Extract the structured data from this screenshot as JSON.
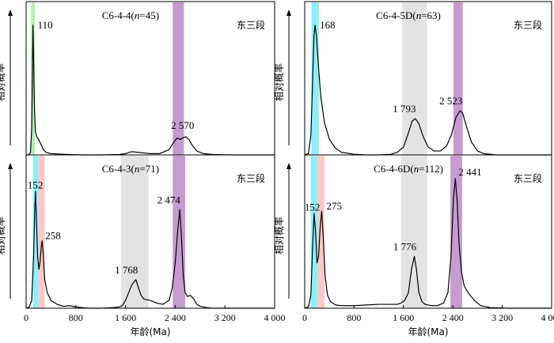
{
  "chart_data": [
    {
      "type": "line",
      "title": "C6-4-4(n=45)",
      "title_parts": [
        "C6-4-4(",
        "n",
        "=45)"
      ],
      "stage_label": "东三段",
      "ylabel": "相对概率",
      "xlabel": "",
      "xlim": [
        0,
        4000
      ],
      "xticks": [],
      "bands": [
        {
          "range": [
            80,
            140
          ],
          "color": "#b3f0b3"
        },
        {
          "range": [
            2360,
            2540
          ],
          "color": "#c79bd1"
        }
      ],
      "peaks": [
        {
          "label": "110",
          "x": 110,
          "y": 1.0
        },
        {
          "label": "2 570",
          "x": 2570,
          "y": 0.14
        }
      ],
      "series": [
        {
          "x": [
            0,
            40,
            70,
            90,
            100,
            110,
            120,
            135,
            150,
            170,
            200,
            240,
            280,
            320,
            400,
            600,
            900,
            1200,
            1500,
            1600,
            1700,
            1800,
            1900,
            2000,
            2150,
            2300,
            2380,
            2430,
            2480,
            2520,
            2570,
            2620,
            2680,
            2750,
            2850,
            3000,
            3300,
            3700,
            4000
          ],
          "y": [
            0,
            0,
            0.02,
            0.2,
            0.6,
            1.0,
            0.75,
            0.35,
            0.18,
            0.14,
            0.12,
            0.08,
            0.04,
            0.02,
            0.01,
            0.005,
            0,
            0,
            0.003,
            0.01,
            0.025,
            0.02,
            0.015,
            0.01,
            0.01,
            0.04,
            0.1,
            0.13,
            0.12,
            0.13,
            0.14,
            0.12,
            0.07,
            0.03,
            0.01,
            0.003,
            0,
            0,
            0
          ]
        }
      ]
    },
    {
      "type": "line",
      "title": "C6-4-5D(n=63)",
      "title_parts": [
        "C6-4-5D(",
        "n",
        "=63)"
      ],
      "stage_label": "东三段",
      "ylabel": "相对概率",
      "xlabel": "",
      "xlim": [
        0,
        4000
      ],
      "xticks": [],
      "bands": [
        {
          "range": [
            110,
            230
          ],
          "color": "#8ef0f7"
        },
        {
          "range": [
            1580,
            1980
          ],
          "color": "#e3e3e3"
        },
        {
          "range": [
            2410,
            2560
          ],
          "color": "#c79bd1"
        }
      ],
      "peaks": [
        {
          "label": "168",
          "x": 168,
          "y": 1.0
        },
        {
          "label": "1 793",
          "x": 1793,
          "y": 0.28
        },
        {
          "label": "2 523",
          "x": 2523,
          "y": 0.34
        }
      ],
      "series": [
        {
          "x": [
            0,
            60,
            100,
            130,
            150,
            168,
            190,
            220,
            260,
            320,
            400,
            500,
            600,
            800,
            1000,
            1200,
            1400,
            1500,
            1600,
            1680,
            1740,
            1793,
            1850,
            1920,
            2000,
            2100,
            2200,
            2300,
            2380,
            2450,
            2500,
            2523,
            2560,
            2620,
            2700,
            2800,
            2900,
            3100,
            3500,
            4000
          ],
          "y": [
            0,
            0.01,
            0.15,
            0.6,
            0.92,
            1.0,
            0.92,
            0.7,
            0.45,
            0.25,
            0.12,
            0.05,
            0.02,
            0.005,
            0,
            0,
            0.005,
            0.02,
            0.06,
            0.17,
            0.26,
            0.28,
            0.24,
            0.14,
            0.06,
            0.03,
            0.03,
            0.07,
            0.16,
            0.29,
            0.33,
            0.34,
            0.32,
            0.22,
            0.1,
            0.03,
            0.01,
            0,
            0,
            0
          ]
        }
      ]
    },
    {
      "type": "line",
      "title": "C6-4-3(n=71)",
      "title_parts": [
        "C6-4-3(",
        "n",
        "=71)"
      ],
      "stage_label": "东三段",
      "ylabel": "相对概率",
      "xlabel": "年龄(Ma)",
      "xlim": [
        0,
        4000
      ],
      "xticks": [
        "0",
        "800",
        "1 600",
        "2 400",
        "3 200",
        "4 000"
      ],
      "bands": [
        {
          "range": [
            110,
            200
          ],
          "color": "#8ef0f7"
        },
        {
          "range": [
            200,
            300
          ],
          "color": "#ffc8c8"
        },
        {
          "range": [
            1530,
            1970
          ],
          "color": "#e3e3e3"
        },
        {
          "range": [
            2360,
            2560
          ],
          "color": "#c79bd1"
        }
      ],
      "peaks": [
        {
          "label": "152",
          "x": 152,
          "y": 0.9
        },
        {
          "label": "258",
          "x": 258,
          "y": 0.52
        },
        {
          "label": "1 768",
          "x": 1768,
          "y": 0.22
        },
        {
          "label": "2 474",
          "x": 2474,
          "y": 0.76
        }
      ],
      "series": [
        {
          "x": [
            0,
            50,
            90,
            120,
            140,
            152,
            165,
            185,
            205,
            225,
            245,
            258,
            275,
            300,
            340,
            400,
            500,
            600,
            700,
            800,
            900,
            1000,
            1200,
            1400,
            1500,
            1550,
            1600,
            1650,
            1700,
            1768,
            1800,
            1850,
            1900,
            1950,
            2000,
            2100,
            2200,
            2300,
            2350,
            2400,
            2440,
            2474,
            2500,
            2530,
            2560,
            2600,
            2640,
            2700,
            2750,
            2800,
            2900,
            3000,
            3300,
            3700,
            4000
          ],
          "y": [
            0,
            0.01,
            0.06,
            0.4,
            0.78,
            0.9,
            0.7,
            0.4,
            0.3,
            0.36,
            0.48,
            0.52,
            0.42,
            0.22,
            0.12,
            0.06,
            0.03,
            0.015,
            0.02,
            0.01,
            0.005,
            0,
            0,
            0.005,
            0.01,
            0.02,
            0.06,
            0.12,
            0.18,
            0.22,
            0.17,
            0.1,
            0.07,
            0.065,
            0.06,
            0.04,
            0.03,
            0.06,
            0.15,
            0.35,
            0.6,
            0.76,
            0.55,
            0.25,
            0.12,
            0.09,
            0.1,
            0.07,
            0.03,
            0.015,
            0.005,
            0,
            0,
            0,
            0
          ]
        }
      ]
    },
    {
      "type": "line",
      "title": "C6-4-6D(n=112)",
      "title_parts": [
        "C6-4-6D(",
        "n",
        "=112)"
      ],
      "stage_label": "东三段",
      "ylabel": "相对概率",
      "xlabel": "年龄(Ma)",
      "xlim": [
        0,
        4000
      ],
      "xticks": [
        "0",
        "800",
        "1 600",
        "2 400",
        "3 200",
        "4 000"
      ],
      "bands": [
        {
          "range": [
            100,
            210
          ],
          "color": "#8ef0f7"
        },
        {
          "range": [
            210,
            320
          ],
          "color": "#ffc8c8"
        },
        {
          "range": [
            1560,
            1980
          ],
          "color": "#e3e3e3"
        },
        {
          "range": [
            2360,
            2550
          ],
          "color": "#c79bd1"
        }
      ],
      "peaks": [
        {
          "label": "152",
          "x": 152,
          "y": 0.73
        },
        {
          "label": "275",
          "x": 275,
          "y": 0.75
        },
        {
          "label": "1 776",
          "x": 1776,
          "y": 0.4
        },
        {
          "label": "2 441",
          "x": 2441,
          "y": 1.0
        }
      ],
      "series": [
        {
          "x": [
            0,
            60,
            100,
            130,
            152,
            175,
            200,
            225,
            250,
            275,
            300,
            330,
            370,
            420,
            500,
            600,
            800,
            1000,
            1200,
            1400,
            1500,
            1560,
            1620,
            1680,
            1730,
            1776,
            1810,
            1850,
            1900,
            1950,
            2050,
            2150,
            2250,
            2320,
            2370,
            2410,
            2441,
            2470,
            2500,
            2540,
            2580,
            2620,
            2680,
            2750,
            2850,
            3000,
            3300,
            3700,
            4000
          ],
          "y": [
            0,
            0.01,
            0.1,
            0.5,
            0.73,
            0.6,
            0.35,
            0.4,
            0.62,
            0.75,
            0.55,
            0.25,
            0.1,
            0.05,
            0.025,
            0.02,
            0.02,
            0.025,
            0.03,
            0.03,
            0.03,
            0.04,
            0.06,
            0.12,
            0.3,
            0.4,
            0.3,
            0.12,
            0.05,
            0.03,
            0.02,
            0.02,
            0.04,
            0.12,
            0.4,
            0.85,
            1.0,
            0.82,
            0.5,
            0.28,
            0.18,
            0.14,
            0.1,
            0.06,
            0.02,
            0.005,
            0,
            0,
            0
          ]
        }
      ]
    }
  ]
}
